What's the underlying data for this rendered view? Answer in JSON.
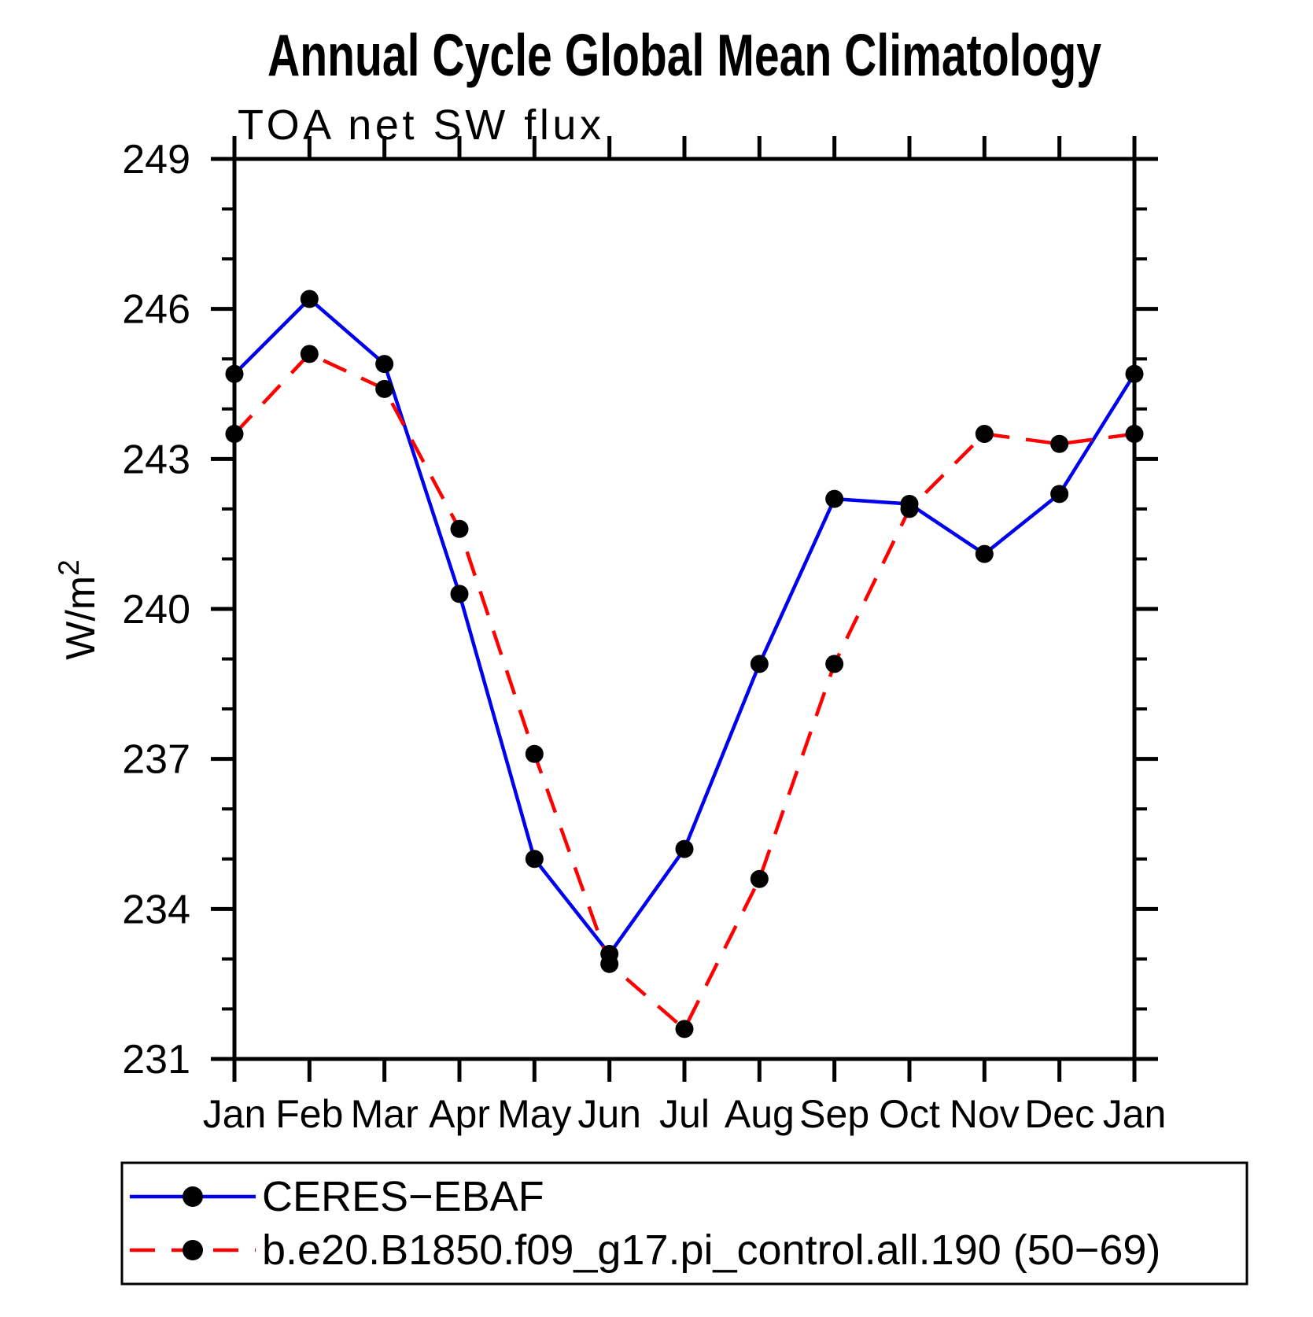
{
  "title": "Annual Cycle Global Mean Climatology",
  "subtitle": "TOA net SW flux",
  "yaxis": {
    "label_base": "W/m",
    "label_exponent": "2",
    "tick_labels": [
      "231",
      "234",
      "237",
      "240",
      "243",
      "246",
      "249"
    ]
  },
  "xaxis": {
    "tick_labels": [
      "Jan",
      "Feb",
      "Mar",
      "Apr",
      "May",
      "Jun",
      "Jul",
      "Aug",
      "Sep",
      "Oct",
      "Nov",
      "Dec",
      "Jan"
    ]
  },
  "chart_data": {
    "type": "line",
    "categories": [
      "Jan",
      "Feb",
      "Mar",
      "Apr",
      "May",
      "Jun",
      "Jul",
      "Aug",
      "Sep",
      "Oct",
      "Nov",
      "Dec",
      "Jan"
    ],
    "series": [
      {
        "name": "CERES−EBAF",
        "color": "#0000ee",
        "line_style": "solid",
        "marker": "filled-circle",
        "marker_color": "#000000",
        "values": [
          244.7,
          246.2,
          244.9,
          240.3,
          235.0,
          233.1,
          235.2,
          238.9,
          242.2,
          242.1,
          241.1,
          242.3,
          244.7
        ]
      },
      {
        "name": "b.e20.B1850.f09_g17.pi_control.all.190 (50−69)",
        "color": "#ff0000",
        "line_style": "dashed",
        "marker": "filled-circle",
        "marker_color": "#000000",
        "values": [
          243.5,
          245.1,
          244.4,
          241.6,
          237.1,
          232.9,
          231.6,
          234.6,
          238.9,
          242.0,
          243.5,
          243.3,
          243.5
        ]
      }
    ],
    "title": "Annual Cycle Global Mean Climatology",
    "subtitle": "TOA net SW flux",
    "xlabel": "",
    "ylabel": "W/m²",
    "ylim": [
      231,
      249
    ],
    "yticks_major": [
      231,
      234,
      237,
      240,
      243,
      246,
      249
    ],
    "ytick_minor_interval": 1,
    "grid": "off",
    "legend_position": "bottom"
  },
  "legend": {
    "entries": [
      {
        "label": "CERES−EBAF"
      },
      {
        "label": "b.e20.B1850.f09_g17.pi_control.all.190 (50−69)"
      }
    ]
  }
}
